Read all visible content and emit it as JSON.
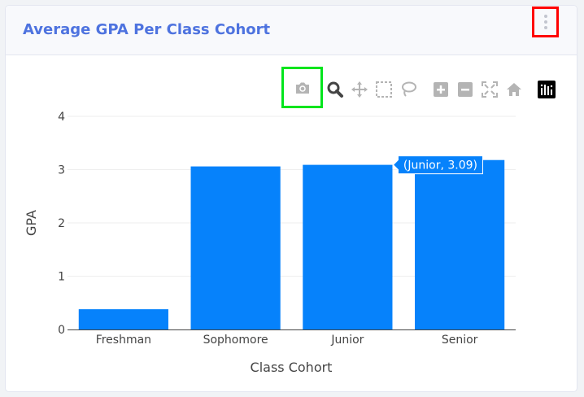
{
  "card": {
    "title": "Average GPA Per Class Cohort",
    "menu_icon": "kebab-vertical-icon"
  },
  "modebar": {
    "buttons": [
      {
        "name": "camera-icon",
        "title": "Download plot as a png"
      },
      {
        "name": "zoom-icon",
        "title": "Zoom"
      },
      {
        "name": "pan-icon",
        "title": "Pan"
      },
      {
        "name": "box-select-icon",
        "title": "Box Select"
      },
      {
        "name": "lasso-select-icon",
        "title": "Lasso Select"
      },
      {
        "name": "zoom-in-icon",
        "title": "Zoom in"
      },
      {
        "name": "zoom-out-icon",
        "title": "Zoom out"
      },
      {
        "name": "autoscale-icon",
        "title": "Autoscale"
      },
      {
        "name": "reset-axes-icon",
        "title": "Reset axes"
      },
      {
        "name": "plotly-logo-icon",
        "title": "Produced with Plotly"
      }
    ],
    "active_color": "#444444",
    "inactive_color": "#b4b4b4"
  },
  "chart_data": {
    "type": "bar",
    "categories": [
      "Freshman",
      "Sophomore",
      "Junior",
      "Senior"
    ],
    "values": [
      0.38,
      3.06,
      3.09,
      3.18
    ],
    "xlabel": "Class Cohort",
    "ylabel": "GPA",
    "ylim": [
      0,
      4
    ],
    "yticks": [
      0,
      1,
      2,
      3,
      4
    ],
    "grid": true,
    "bar_color": "#0682fb",
    "hover": {
      "category": "Junior",
      "label": "(Junior, 3.09)"
    }
  }
}
